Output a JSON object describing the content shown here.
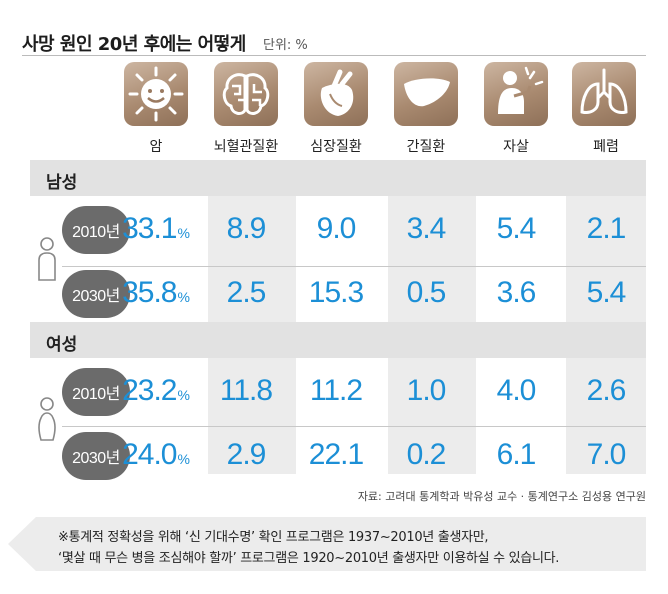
{
  "title": "사망 원인 20년 후에는 어떻게",
  "unit": "단위: %",
  "icons": [
    "sun-icon",
    "brain-icon",
    "heart-icon",
    "liver-icon",
    "suicide-icon",
    "lungs-icon"
  ],
  "chart_data": {
    "type": "table",
    "title": "사망 원인 20년 후에는 어떻게",
    "unit": "%",
    "categories": [
      "암",
      "뇌혈관질환",
      "심장질환",
      "간질환",
      "자살",
      "폐렴"
    ],
    "groups": [
      {
        "label": "남성",
        "rows": [
          {
            "year": "2010년",
            "values": [
              "33.1",
              "8.9",
              "9.0",
              "3.4",
              "5.4",
              "2.1"
            ]
          },
          {
            "year": "2030년",
            "values": [
              "35.8",
              "2.5",
              "15.3",
              "0.5",
              "3.6",
              "5.4"
            ]
          }
        ]
      },
      {
        "label": "여성",
        "rows": [
          {
            "year": "2010년",
            "values": [
              "23.2",
              "11.8",
              "11.2",
              "1.0",
              "4.0",
              "2.6"
            ]
          },
          {
            "year": "2030년",
            "values": [
              "24.0",
              "2.9",
              "22.1",
              "0.2",
              "6.1",
              "7.0"
            ]
          }
        ]
      }
    ],
    "pct_suffix": "%"
  },
  "source": "자료: 고려대 통계학과 박유성 교수 · 통계연구소 김성용 연구원",
  "note": {
    "line1": "※통계적 정확성을 위해 ‘신 기대수명’ 확인 프로그램은 1937~2010년 출생자만,",
    "line2": "‘몇살 때 무슨 병을 조심해야 할까’ 프로그램은 1920~2010년 출생자만 이용하실 수 있습니다."
  }
}
